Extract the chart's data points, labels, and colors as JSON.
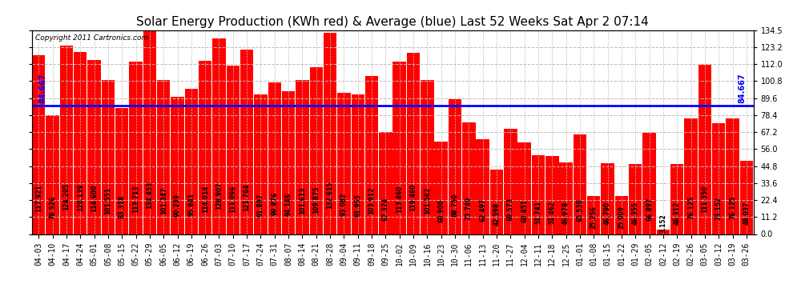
{
  "title": "Solar Energy Production (KWh red) & Average (blue) Last 52 Weeks Sat Apr 2 07:14",
  "copyright": "Copyright 2011 Cartronics.com",
  "average": 84.667,
  "bar_color": "#ff0000",
  "avg_line_color": "#0000ff",
  "background_color": "#ffffff",
  "grid_color": "#c0c0c0",
  "ylim": [
    0.0,
    134.5
  ],
  "yticks": [
    0.0,
    11.2,
    22.4,
    33.6,
    44.8,
    56.0,
    67.2,
    78.4,
    89.6,
    100.8,
    112.0,
    123.2,
    134.5
  ],
  "ytick_labels": [
    "0.0",
    "11.2",
    "22.4",
    "33.6",
    "44.8",
    "56.0",
    "67.2",
    "78.4",
    "89.6",
    "100.8",
    "112.0",
    "123.2",
    "134.5"
  ],
  "categories": [
    "04-03",
    "04-10",
    "04-17",
    "04-24",
    "05-01",
    "05-08",
    "05-15",
    "05-22",
    "05-29",
    "06-05",
    "06-12",
    "06-19",
    "06-26",
    "07-03",
    "07-10",
    "07-17",
    "07-24",
    "07-31",
    "08-07",
    "08-14",
    "08-21",
    "08-28",
    "09-04",
    "09-11",
    "09-18",
    "09-25",
    "10-02",
    "10-09",
    "10-16",
    "10-23",
    "10-30",
    "11-06",
    "11-13",
    "11-20",
    "11-27",
    "12-04",
    "12-11",
    "12-18",
    "12-25",
    "01-01",
    "01-08",
    "01-15",
    "01-22",
    "01-29",
    "02-05",
    "02-12",
    "02-19",
    "02-26",
    "03-05",
    "03-12",
    "03-19",
    "03-26"
  ],
  "values": [
    117.921,
    78.526,
    124.205,
    120.139,
    114.6,
    101.551,
    83.318,
    113.713,
    134.453,
    101.347,
    90.239,
    95.841,
    114.014,
    128.907,
    111.096,
    121.764,
    91.897,
    99.876,
    94.146,
    101.613,
    109.875,
    132.615,
    93.082,
    91.955,
    103.912,
    67.324,
    113.46,
    119.46,
    101.562,
    60.9,
    88.75,
    73.749,
    62.497,
    42.598,
    69.573,
    60.451,
    51.741,
    51.462,
    46.978,
    65.53,
    25.256,
    46.79,
    25.009,
    46.355,
    66.897,
    3.152,
    46.312,
    76.125,
    111.35,
    73.152,
    76.125,
    48.037
  ],
  "bar_value_fontsize": 5.5,
  "title_fontsize": 11,
  "tick_fontsize": 7,
  "avg_label_fontsize": 7
}
